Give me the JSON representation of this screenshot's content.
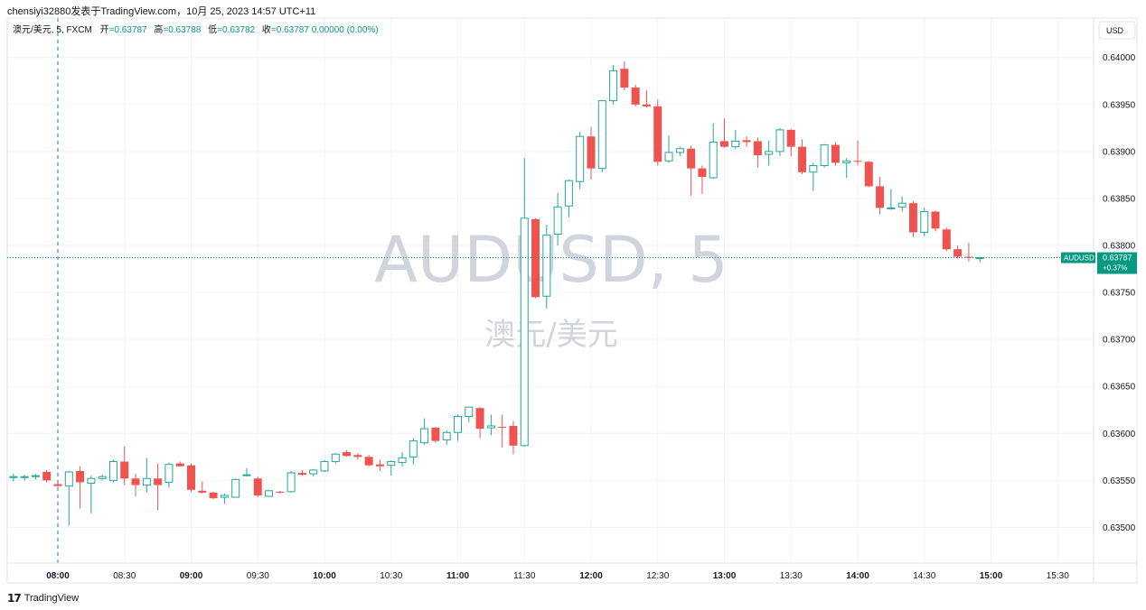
{
  "header": {
    "credit": "chensiyi32880发表于TradingView.com，10月 25, 2023 14:57 UTC+11"
  },
  "legend": {
    "symbol": "澳元/美元, 5, FXCM",
    "open_label": "开",
    "open_value": "=0.63787",
    "high_label": "高",
    "high_value": "=0.63788",
    "low_label": "低",
    "low_value": "=0.63782",
    "close_label": "收",
    "close_value": "=0.63787 0.00000 (0.00%)"
  },
  "currency_button": "USD",
  "watermark": {
    "main": "AUDUSD, 5",
    "sub": "澳元/美元"
  },
  "price_tag": {
    "symbol": "AUDUSD",
    "price": "0.63787",
    "change": "+0.37%"
  },
  "footer": {
    "brand": "TradingView"
  },
  "colors": {
    "up": "#26a69a",
    "down": "#ef5350",
    "grid": "#f0f3fa",
    "crosshair": "#2962ff",
    "tag_bg": "#089981"
  },
  "chart_data": {
    "type": "candlestick",
    "x_ticks": [
      "08:00",
      "08:30",
      "09:00",
      "09:30",
      "10:00",
      "10:30",
      "11:00",
      "11:30",
      "12:00",
      "12:30",
      "13:00",
      "13:30",
      "14:00",
      "14:30",
      "15:00",
      "15:30"
    ],
    "y_ticks": [
      "0.64000",
      "0.63950",
      "0.63900",
      "0.63850",
      "0.63800",
      "0.63750",
      "0.63700",
      "0.63650",
      "0.63600",
      "0.63550",
      "0.63500"
    ],
    "ylim": [
      0.63462,
      0.64042
    ],
    "crosshair_time": "08:00",
    "current_price": 0.63787,
    "interval_minutes": 5,
    "candles": [
      {
        "t": "07:40",
        "o": 0.63553,
        "h": 0.63557,
        "l": 0.63549,
        "c": 0.63554
      },
      {
        "t": "07:45",
        "o": 0.63553,
        "h": 0.63556,
        "l": 0.6355,
        "c": 0.63554
      },
      {
        "t": "07:50",
        "o": 0.63554,
        "h": 0.63557,
        "l": 0.63551,
        "c": 0.63555
      },
      {
        "t": "07:55",
        "o": 0.63559,
        "h": 0.63561,
        "l": 0.63548,
        "c": 0.6355
      },
      {
        "t": "08:00",
        "o": 0.63546,
        "h": 0.63547,
        "l": 0.63543,
        "c": 0.63544
      },
      {
        "t": "08:05",
        "o": 0.63544,
        "h": 0.6356,
        "l": 0.63502,
        "c": 0.63559
      },
      {
        "t": "08:10",
        "o": 0.6356,
        "h": 0.63565,
        "l": 0.6352,
        "c": 0.63548
      },
      {
        "t": "08:15",
        "o": 0.63547,
        "h": 0.63555,
        "l": 0.63515,
        "c": 0.63552
      },
      {
        "t": "08:20",
        "o": 0.63552,
        "h": 0.63556,
        "l": 0.6355,
        "c": 0.63554
      },
      {
        "t": "08:25",
        "o": 0.6355,
        "h": 0.63572,
        "l": 0.63548,
        "c": 0.6357
      },
      {
        "t": "08:30",
        "o": 0.6357,
        "h": 0.63586,
        "l": 0.63545,
        "c": 0.63552
      },
      {
        "t": "08:35",
        "o": 0.63552,
        "h": 0.63557,
        "l": 0.63533,
        "c": 0.63545
      },
      {
        "t": "08:40",
        "o": 0.63545,
        "h": 0.63574,
        "l": 0.63537,
        "c": 0.63552
      },
      {
        "t": "08:45",
        "o": 0.63552,
        "h": 0.63568,
        "l": 0.63518,
        "c": 0.63545
      },
      {
        "t": "08:50",
        "o": 0.63548,
        "h": 0.63569,
        "l": 0.63542,
        "c": 0.63567
      },
      {
        "t": "08:55",
        "o": 0.63568,
        "h": 0.6357,
        "l": 0.63565,
        "c": 0.63565
      },
      {
        "t": "09:00",
        "o": 0.63566,
        "h": 0.63568,
        "l": 0.63538,
        "c": 0.6354
      },
      {
        "t": "09:05",
        "o": 0.63539,
        "h": 0.63549,
        "l": 0.63536,
        "c": 0.63537
      },
      {
        "t": "09:10",
        "o": 0.63537,
        "h": 0.63538,
        "l": 0.6353,
        "c": 0.63531
      },
      {
        "t": "09:15",
        "o": 0.63532,
        "h": 0.63536,
        "l": 0.63525,
        "c": 0.63534
      },
      {
        "t": "09:20",
        "o": 0.63532,
        "h": 0.63552,
        "l": 0.63532,
        "c": 0.63551
      },
      {
        "t": "09:25",
        "o": 0.63555,
        "h": 0.63563,
        "l": 0.63554,
        "c": 0.63556
      },
      {
        "t": "09:30",
        "o": 0.63552,
        "h": 0.63554,
        "l": 0.63532,
        "c": 0.63534
      },
      {
        "t": "09:35",
        "o": 0.63533,
        "h": 0.6354,
        "l": 0.63533,
        "c": 0.63539
      },
      {
        "t": "09:40",
        "o": 0.63538,
        "h": 0.63539,
        "l": 0.63536,
        "c": 0.63537
      },
      {
        "t": "09:45",
        "o": 0.63538,
        "h": 0.6356,
        "l": 0.63537,
        "c": 0.63558
      },
      {
        "t": "09:50",
        "o": 0.63558,
        "h": 0.63561,
        "l": 0.63555,
        "c": 0.63556
      },
      {
        "t": "09:55",
        "o": 0.63557,
        "h": 0.63562,
        "l": 0.63554,
        "c": 0.63561
      },
      {
        "t": "10:00",
        "o": 0.6356,
        "h": 0.63572,
        "l": 0.63559,
        "c": 0.6357
      },
      {
        "t": "10:05",
        "o": 0.6357,
        "h": 0.63579,
        "l": 0.63568,
        "c": 0.63578
      },
      {
        "t": "10:10",
        "o": 0.6358,
        "h": 0.63582,
        "l": 0.63575,
        "c": 0.63576
      },
      {
        "t": "10:15",
        "o": 0.63577,
        "h": 0.63579,
        "l": 0.63572,
        "c": 0.63575
      },
      {
        "t": "10:20",
        "o": 0.63575,
        "h": 0.63577,
        "l": 0.63565,
        "c": 0.63566
      },
      {
        "t": "10:25",
        "o": 0.63567,
        "h": 0.63572,
        "l": 0.6356,
        "c": 0.63565
      },
      {
        "t": "10:30",
        "o": 0.63566,
        "h": 0.63571,
        "l": 0.63555,
        "c": 0.6357
      },
      {
        "t": "10:35",
        "o": 0.63569,
        "h": 0.6358,
        "l": 0.63565,
        "c": 0.63574
      },
      {
        "t": "10:40",
        "o": 0.63575,
        "h": 0.63595,
        "l": 0.63567,
        "c": 0.63592
      },
      {
        "t": "10:45",
        "o": 0.6359,
        "h": 0.63616,
        "l": 0.63588,
        "c": 0.63605
      },
      {
        "t": "10:50",
        "o": 0.63606,
        "h": 0.63607,
        "l": 0.6359,
        "c": 0.63592
      },
      {
        "t": "10:55",
        "o": 0.63593,
        "h": 0.63603,
        "l": 0.63588,
        "c": 0.63601
      },
      {
        "t": "11:00",
        "o": 0.63601,
        "h": 0.6362,
        "l": 0.63592,
        "c": 0.63618
      },
      {
        "t": "11:05",
        "o": 0.63618,
        "h": 0.63628,
        "l": 0.63612,
        "c": 0.63628
      },
      {
        "t": "11:10",
        "o": 0.63627,
        "h": 0.63628,
        "l": 0.63595,
        "c": 0.63605
      },
      {
        "t": "11:15",
        "o": 0.63606,
        "h": 0.6362,
        "l": 0.63598,
        "c": 0.63608
      },
      {
        "t": "11:20",
        "o": 0.63607,
        "h": 0.6362,
        "l": 0.63585,
        "c": 0.63606
      },
      {
        "t": "11:25",
        "o": 0.63608,
        "h": 0.63613,
        "l": 0.63578,
        "c": 0.63587
      },
      {
        "t": "11:30",
        "o": 0.63587,
        "h": 0.63893,
        "l": 0.63586,
        "c": 0.63829
      },
      {
        "t": "11:35",
        "o": 0.63828,
        "h": 0.63829,
        "l": 0.63744,
        "c": 0.63745
      },
      {
        "t": "11:40",
        "o": 0.63746,
        "h": 0.63822,
        "l": 0.63733,
        "c": 0.63811
      },
      {
        "t": "11:45",
        "o": 0.63812,
        "h": 0.63856,
        "l": 0.638,
        "c": 0.63841
      },
      {
        "t": "11:50",
        "o": 0.63842,
        "h": 0.6387,
        "l": 0.6383,
        "c": 0.63869
      },
      {
        "t": "11:55",
        "o": 0.63868,
        "h": 0.63921,
        "l": 0.6386,
        "c": 0.63916
      },
      {
        "t": "12:00",
        "o": 0.63916,
        "h": 0.63926,
        "l": 0.6387,
        "c": 0.63882
      },
      {
        "t": "12:05",
        "o": 0.63882,
        "h": 0.63955,
        "l": 0.63878,
        "c": 0.63954
      },
      {
        "t": "12:10",
        "o": 0.63954,
        "h": 0.63992,
        "l": 0.6395,
        "c": 0.63986
      },
      {
        "t": "12:15",
        "o": 0.63988,
        "h": 0.63996,
        "l": 0.63965,
        "c": 0.63968
      },
      {
        "t": "12:20",
        "o": 0.63968,
        "h": 0.63971,
        "l": 0.63948,
        "c": 0.6395
      },
      {
        "t": "12:25",
        "o": 0.6395,
        "h": 0.63965,
        "l": 0.63947,
        "c": 0.63948
      },
      {
        "t": "12:30",
        "o": 0.63948,
        "h": 0.63955,
        "l": 0.63885,
        "c": 0.63889
      },
      {
        "t": "12:35",
        "o": 0.6389,
        "h": 0.63917,
        "l": 0.63888,
        "c": 0.63899
      },
      {
        "t": "12:40",
        "o": 0.63899,
        "h": 0.63905,
        "l": 0.63895,
        "c": 0.63903
      },
      {
        "t": "12:45",
        "o": 0.63903,
        "h": 0.63906,
        "l": 0.63853,
        "c": 0.63882
      },
      {
        "t": "12:50",
        "o": 0.63882,
        "h": 0.63885,
        "l": 0.63855,
        "c": 0.63873
      },
      {
        "t": "12:55",
        "o": 0.63872,
        "h": 0.6393,
        "l": 0.63871,
        "c": 0.6391
      },
      {
        "t": "13:00",
        "o": 0.63911,
        "h": 0.63935,
        "l": 0.63904,
        "c": 0.63905
      },
      {
        "t": "13:05",
        "o": 0.63905,
        "h": 0.63923,
        "l": 0.63903,
        "c": 0.63911
      },
      {
        "t": "13:10",
        "o": 0.63912,
        "h": 0.63916,
        "l": 0.63905,
        "c": 0.6391
      },
      {
        "t": "13:15",
        "o": 0.63911,
        "h": 0.63915,
        "l": 0.63883,
        "c": 0.63896
      },
      {
        "t": "13:20",
        "o": 0.63897,
        "h": 0.63912,
        "l": 0.63885,
        "c": 0.639
      },
      {
        "t": "13:25",
        "o": 0.639,
        "h": 0.63925,
        "l": 0.63895,
        "c": 0.63923
      },
      {
        "t": "13:30",
        "o": 0.63923,
        "h": 0.63924,
        "l": 0.63895,
        "c": 0.63905
      },
      {
        "t": "13:35",
        "o": 0.63905,
        "h": 0.63913,
        "l": 0.63876,
        "c": 0.63878
      },
      {
        "t": "13:40",
        "o": 0.63878,
        "h": 0.63888,
        "l": 0.63858,
        "c": 0.63885
      },
      {
        "t": "13:45",
        "o": 0.63885,
        "h": 0.63908,
        "l": 0.63883,
        "c": 0.63907
      },
      {
        "t": "13:50",
        "o": 0.63907,
        "h": 0.6391,
        "l": 0.63885,
        "c": 0.63888
      },
      {
        "t": "13:55",
        "o": 0.63888,
        "h": 0.63893,
        "l": 0.63872,
        "c": 0.6389
      },
      {
        "t": "14:00",
        "o": 0.6389,
        "h": 0.63912,
        "l": 0.63885,
        "c": 0.63889
      },
      {
        "t": "14:05",
        "o": 0.63889,
        "h": 0.6389,
        "l": 0.63862,
        "c": 0.63863
      },
      {
        "t": "14:10",
        "o": 0.63863,
        "h": 0.63873,
        "l": 0.63833,
        "c": 0.6384
      },
      {
        "t": "14:15",
        "o": 0.6384,
        "h": 0.6386,
        "l": 0.63838,
        "c": 0.6384
      },
      {
        "t": "14:20",
        "o": 0.63841,
        "h": 0.63852,
        "l": 0.63836,
        "c": 0.63845
      },
      {
        "t": "14:25",
        "o": 0.63845,
        "h": 0.63847,
        "l": 0.63809,
        "c": 0.63814
      },
      {
        "t": "14:30",
        "o": 0.63814,
        "h": 0.6384,
        "l": 0.6381,
        "c": 0.63836
      },
      {
        "t": "14:35",
        "o": 0.63836,
        "h": 0.63837,
        "l": 0.63815,
        "c": 0.63818
      },
      {
        "t": "14:40",
        "o": 0.63817,
        "h": 0.63819,
        "l": 0.63794,
        "c": 0.63796
      },
      {
        "t": "14:45",
        "o": 0.63796,
        "h": 0.638,
        "l": 0.63786,
        "c": 0.63788
      },
      {
        "t": "14:50",
        "o": 0.63788,
        "h": 0.63803,
        "l": 0.63783,
        "c": 0.63787
      },
      {
        "t": "14:55",
        "o": 0.63787,
        "h": 0.63788,
        "l": 0.63782,
        "c": 0.63787
      }
    ]
  }
}
